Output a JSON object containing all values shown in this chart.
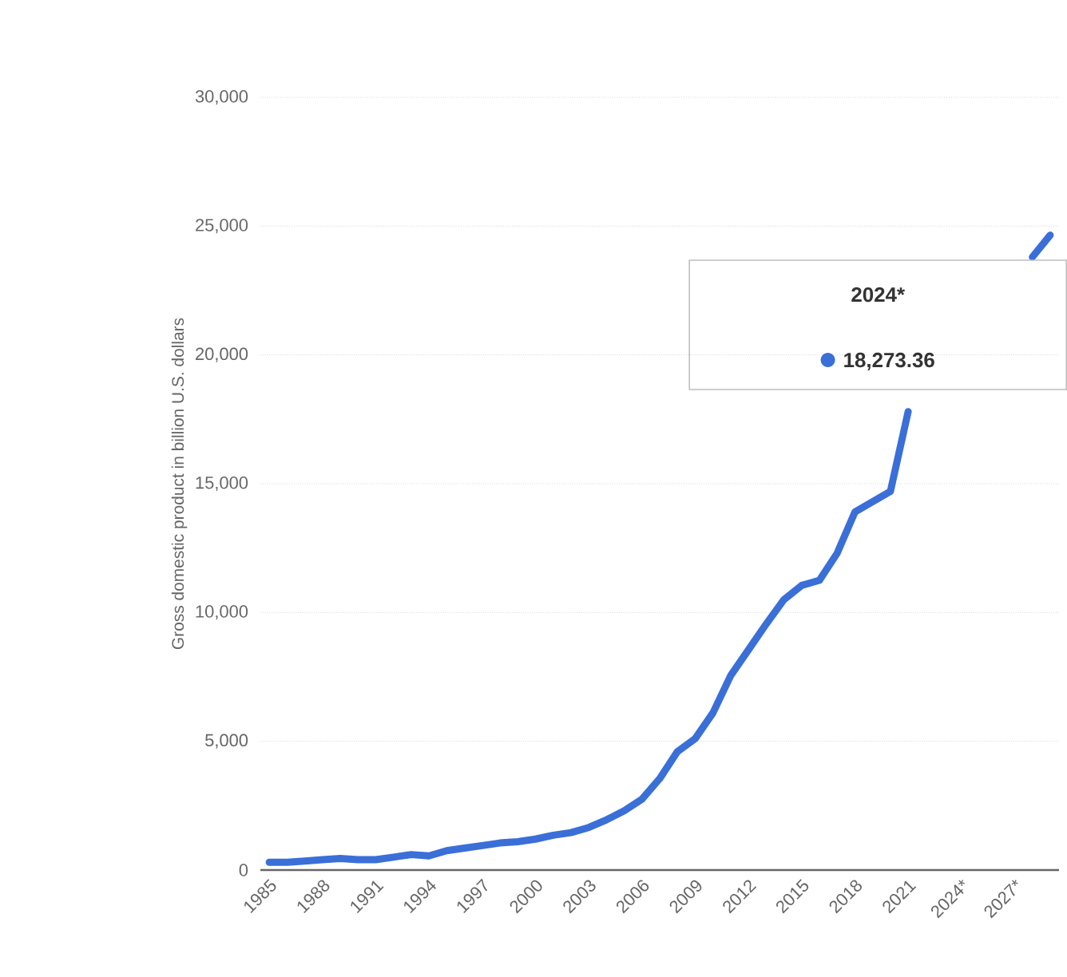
{
  "chart_data": {
    "type": "line",
    "ylabel": "Gross domestic product in billion U.S. dollars",
    "categories": [
      "1985",
      null,
      null,
      "1988",
      null,
      null,
      "1991",
      null,
      null,
      "1994",
      null,
      null,
      "1997",
      null,
      null,
      "2000",
      null,
      null,
      "2003",
      null,
      null,
      "2006",
      null,
      null,
      "2009",
      null,
      null,
      "2012",
      null,
      null,
      "2015",
      null,
      null,
      "2018",
      null,
      null,
      "2021",
      null,
      null,
      "2024*",
      null,
      null,
      "2027*",
      null,
      null
    ],
    "series": [
      {
        "color": "#3a6fd8",
        "values": [
          300,
          300,
          350,
          400,
          450,
          400,
          400,
          500,
          600,
          550,
          750,
          850,
          950,
          1050,
          1100,
          1200,
          1350,
          1450,
          1650,
          1950,
          2300,
          2750,
          3550,
          4600,
          5100,
          6100,
          7550,
          8550,
          9550,
          10500,
          11050,
          11250,
          12300,
          13900,
          14300,
          14700,
          17800,
          null,
          null,
          null,
          null,
          null,
          null,
          23800,
          24650
        ]
      }
    ],
    "ylim": [
      0,
      30000
    ],
    "yticks": [
      {
        "value": 0,
        "label": "0"
      },
      {
        "value": 5000,
        "label": "5,000"
      },
      {
        "value": 10000,
        "label": "10,000"
      },
      {
        "value": 15000,
        "label": "15,000"
      },
      {
        "value": 20000,
        "label": "20,000"
      },
      {
        "value": 25000,
        "label": "25,000"
      },
      {
        "value": 30000,
        "label": "30,000"
      }
    ],
    "grid": "y",
    "marker": "none",
    "line_style": "solid",
    "annotations": [
      "2024*",
      "18,273.36"
    ]
  }
}
